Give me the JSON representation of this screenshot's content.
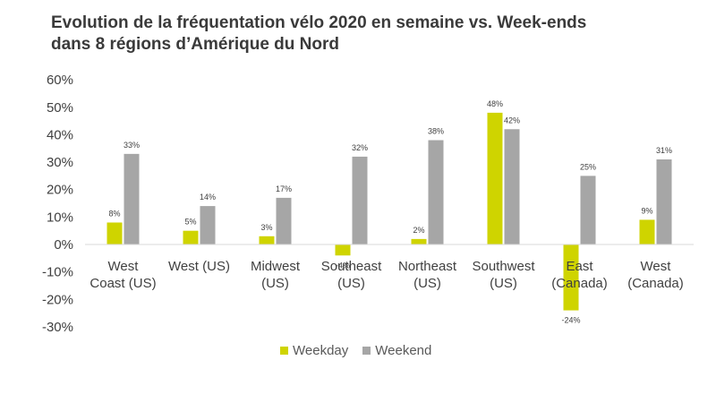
{
  "chart_data": {
    "type": "bar",
    "title_line1": "Evolution de la fréquentation vélo 2020 en semaine vs. Week-ends",
    "title_line2": "dans 8 régions d’Amérique du Nord",
    "categories": [
      [
        "West",
        "Coast (US)"
      ],
      [
        "West (US)"
      ],
      [
        "Midwest",
        "(US)"
      ],
      [
        "Southeast",
        "(US)"
      ],
      [
        "Northeast",
        "(US)"
      ],
      [
        "Southwest",
        "(US)"
      ],
      [
        "East",
        "(Canada)"
      ],
      [
        "West",
        "(Canada)"
      ]
    ],
    "series": [
      {
        "name": "Weekday",
        "color": "#cfd400",
        "values": [
          8,
          5,
          3,
          -4,
          2,
          48,
          -24,
          9
        ],
        "labels": [
          "8%",
          "5%",
          "3%",
          "-4%",
          "2%",
          "48%",
          "-24%",
          "9%"
        ]
      },
      {
        "name": "Weekend",
        "color": "#a6a6a6",
        "values": [
          33,
          14,
          17,
          32,
          38,
          42,
          25,
          31
        ],
        "labels": [
          "33%",
          "14%",
          "17%",
          "32%",
          "38%",
          "42%",
          "25%",
          "31%"
        ]
      }
    ],
    "yticks": [
      "60%",
      "50%",
      "40%",
      "30%",
      "20%",
      "10%",
      "0%",
      "-10%",
      "-20%",
      "-30%"
    ],
    "ylim": [
      -30,
      60
    ],
    "grid": false,
    "legend_position": "bottom"
  }
}
